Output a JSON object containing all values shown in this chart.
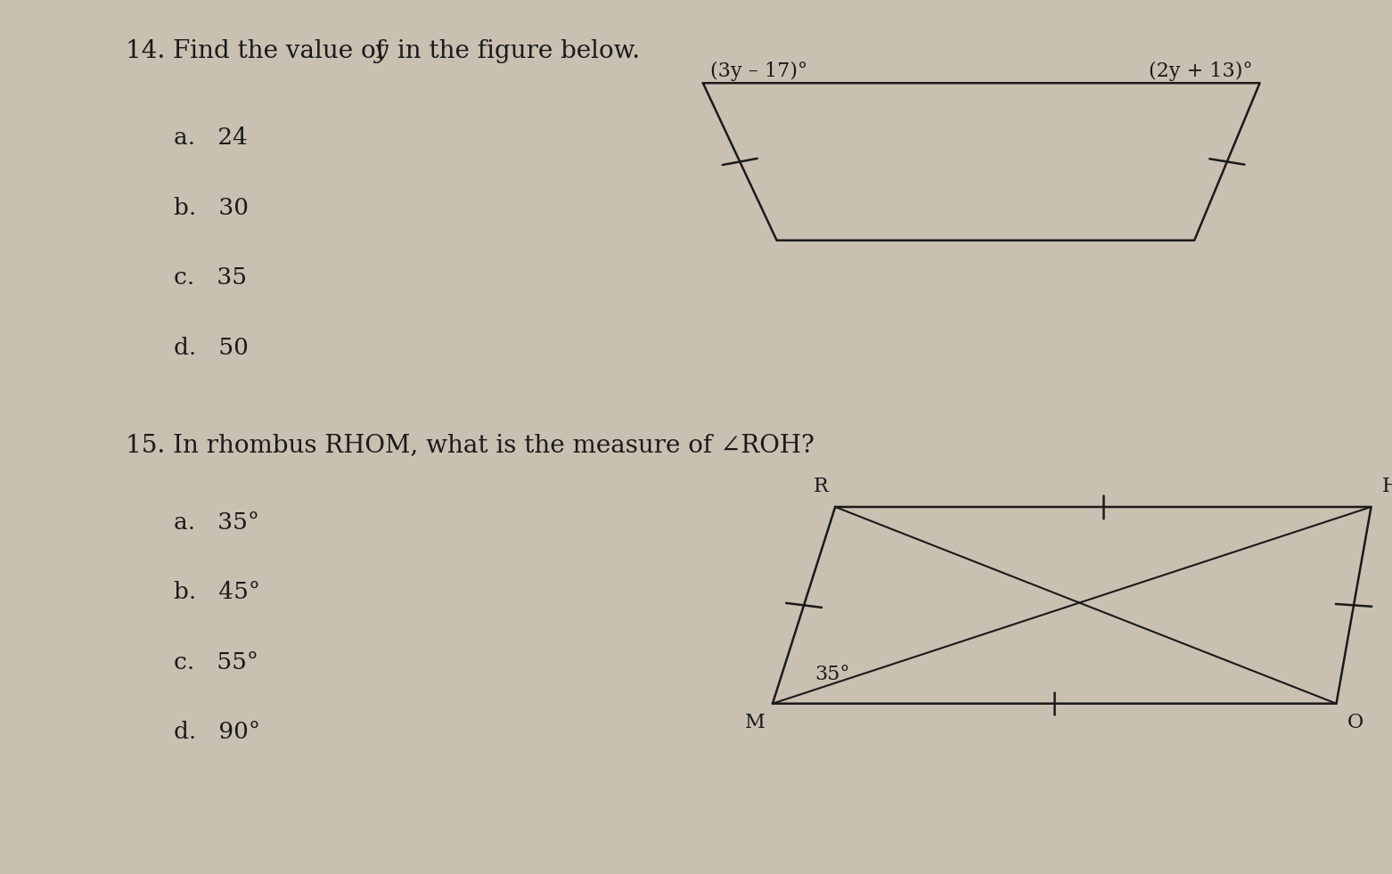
{
  "bg_color": "#c9c0b2",
  "text_color": "#1a1a1a",
  "q14_options": [
    "a.   24",
    "b.   30",
    "c.   35",
    "d.   50"
  ],
  "q15_options": [
    "a.   35°",
    "b.   45°",
    "c.   55°",
    "d.   90°"
  ],
  "trap_label_left": "(3y – 17)°",
  "trap_label_right": "(2y + 13)°",
  "rhom_angle_label": "35°",
  "font_size_main": 20,
  "font_size_options": 19,
  "font_size_shape": 16
}
